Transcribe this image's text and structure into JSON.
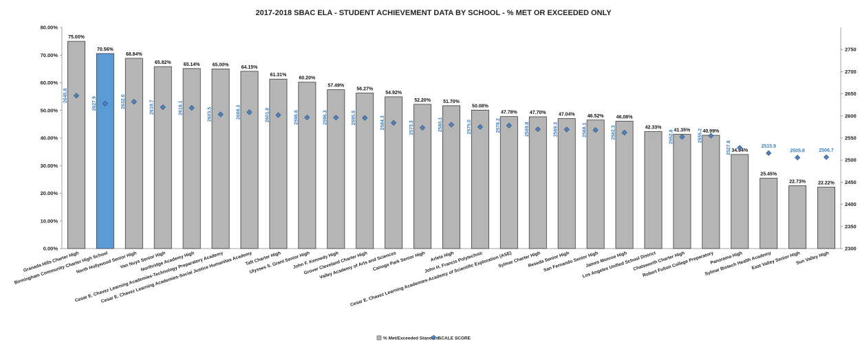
{
  "chart_data": {
    "type": "bar",
    "title": "2017-2018 SBAC ELA - STUDENT ACHIEVEMENT DATA BY SCHOOL - % MET OR EXCEEDED ONLY",
    "categories": [
      "Granada Hills Charter High",
      "Birmingham Community Charter High School",
      "North Hollywood Senior High",
      "Van Nuys Senior High",
      "Northridge Academy High",
      "Cesar E. Chavez Learning Academies-Technology Preparatory Academy",
      "Cesar E. Chavez Learning Academies-Social Justice Humanitas Academy",
      "Taft Charter High",
      "Ulysses S. Grant Senior High",
      "John F. Kennedy High",
      "Grover Cleveland Charter High",
      "Valley Academy of Arts and Sciences",
      "Canoga Park Senior High",
      "Arleta High",
      "John H. Francis Polytechnic",
      "Cesar E. Chavez Learning Academies-Academy of Scientific Exploration (ASE)",
      "Sylmar Charter High",
      "Reseda Senior High",
      "San Fernando Senior High",
      "James Monroe High",
      "Los Angeles Unified School District",
      "Chatsworth Charter High",
      "Robert Fulton College Preparatory",
      "Panorama High",
      "Sylmar Biotech Health Academy",
      "East Valley Senior High",
      "Sun Valley High"
    ],
    "series": [
      {
        "name": "% Met/Exceeded Standard",
        "values": [
          75.0,
          70.56,
          68.84,
          65.82,
          65.14,
          65.0,
          64.15,
          61.31,
          60.2,
          57.49,
          56.27,
          54.92,
          52.2,
          51.7,
          50.08,
          47.78,
          47.7,
          47.04,
          46.52,
          46.08,
          42.33,
          41.35,
          40.99,
          34.04,
          25.45,
          22.73,
          22.22
        ],
        "labels": [
          "75.00%",
          "70.56%",
          "68.84%",
          "65.82%",
          "65.14%",
          "65.00%",
          "64.15%",
          "61.31%",
          "60.20%",
          "57.49%",
          "56.27%",
          "54.92%",
          "52.20%",
          "51.70%",
          "50.08%",
          "47.78%",
          "47.70%",
          "47.04%",
          "46.52%",
          "46.08%",
          "42.33%",
          "41.35%",
          "40.99%",
          "34.04%",
          "25.45%",
          "22.73%",
          "22.22%"
        ],
        "color": "#b5b5b5",
        "highlight_color": "#5b9bd5",
        "highlight_index": 1,
        "axis": "left"
      },
      {
        "name": "SCALE SCORE",
        "values": [
          2645.8,
          2627.9,
          2632.0,
          2619.7,
          2618.1,
          2603.5,
          2608.3,
          2601.8,
          2596.6,
          2596.3,
          2595.5,
          2584.3,
          2573.3,
          2580.1,
          2575.0,
          2578.2,
          2569.8,
          2569.3,
          2568.1,
          2562.3,
          null,
          2552.8,
          2555.2,
          2527.8,
          2515.9,
          2505.8,
          2506.7
        ],
        "labels": [
          "2645.8",
          "2627.9",
          "2632.0",
          "2619.7",
          "2618.1",
          "2603.5",
          "2608.3",
          "2601.8",
          "2596.6",
          "2596.3",
          "2595.5",
          "2584.3",
          "2573.3",
          "2580.1",
          "2575.0",
          "2578.2",
          "2569.8",
          "2569.3",
          "2568.1",
          "2562.3",
          "",
          "2552.8",
          "2555.2",
          "2527.8",
          "2515.9",
          "2505.8",
          "2506.7"
        ],
        "color": "#4f81bd",
        "axis": "right"
      }
    ],
    "y_left": {
      "range": [
        0,
        80
      ],
      "ticks": [
        "0.00%",
        "10.00%",
        "20.00%",
        "30.00%",
        "40.00%",
        "50.00%",
        "60.00%",
        "70.00%",
        "80.00%"
      ]
    },
    "y_right": {
      "range": [
        2300,
        2800
      ],
      "ticks": [
        "2300",
        "2350",
        "2400",
        "2450",
        "2500",
        "2550",
        "2600",
        "2650",
        "2700",
        "2750"
      ]
    },
    "grid": false,
    "legend_position": "bottom",
    "legend": [
      "% Met/Exceeded Standard",
      "SCALE SCORE"
    ]
  }
}
